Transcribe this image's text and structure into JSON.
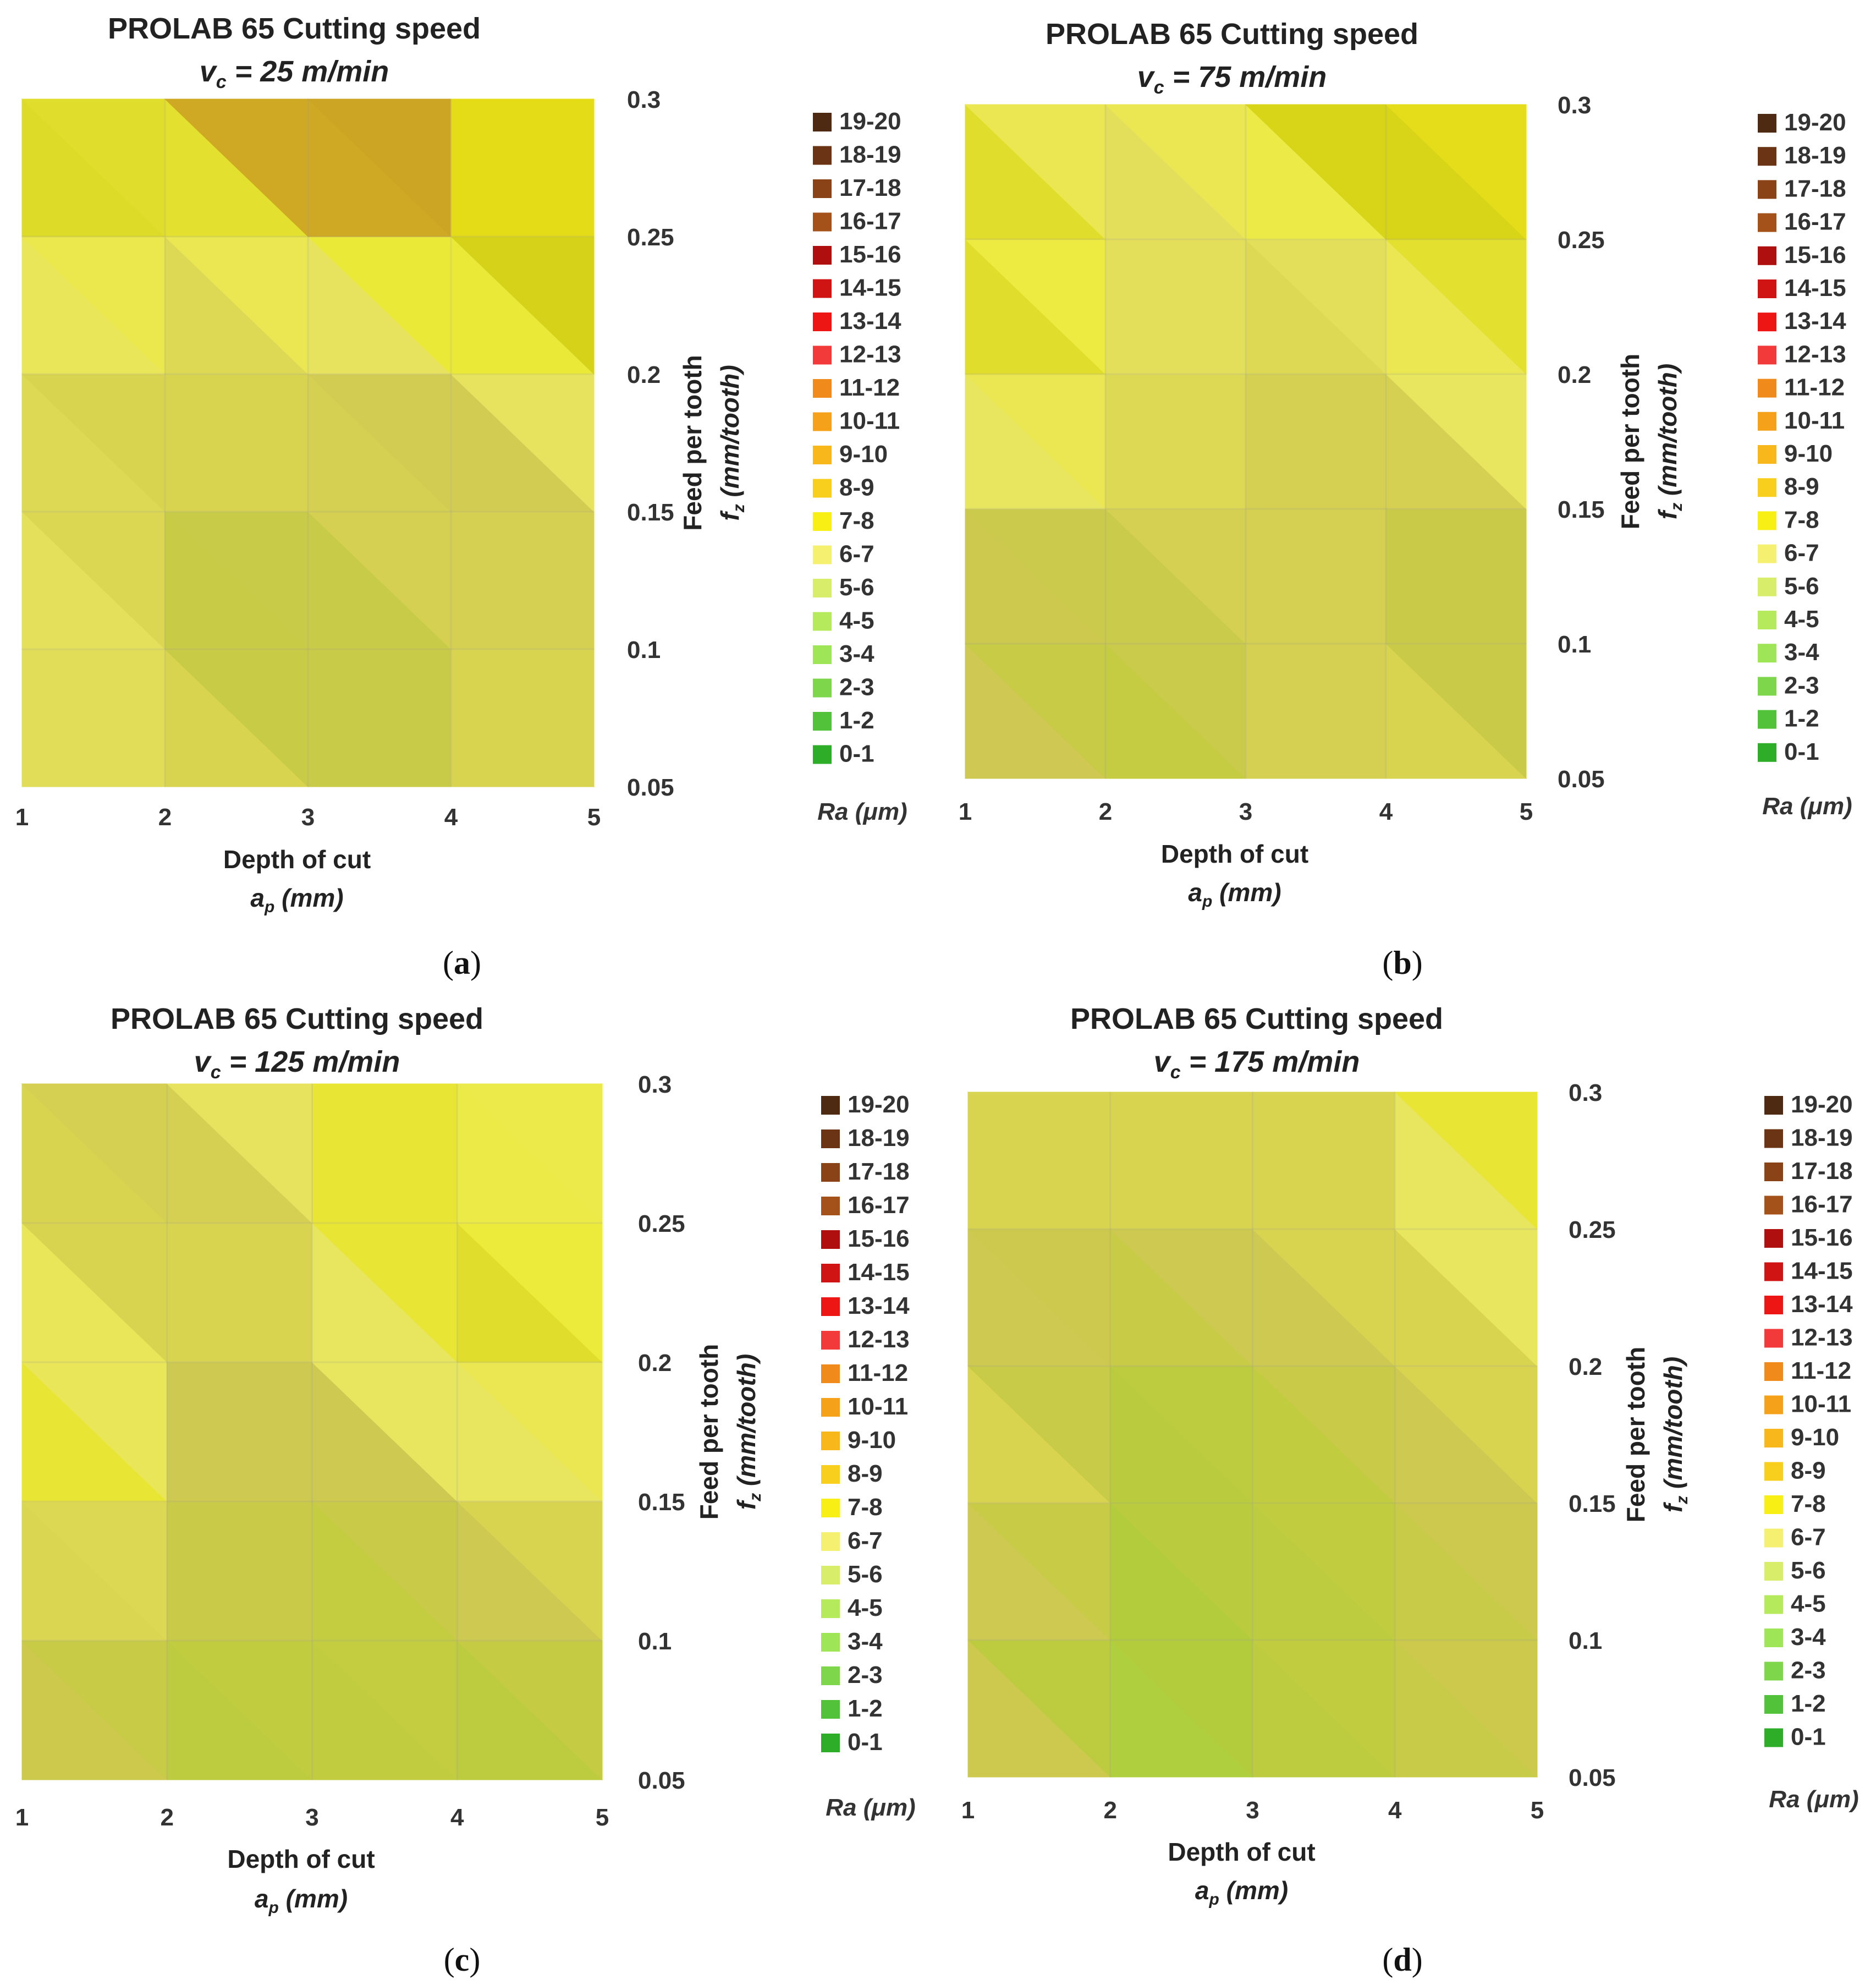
{
  "figure": {
    "panel_labels": [
      "a",
      "b",
      "c",
      "d"
    ],
    "legend_items": [
      "19-20",
      "18-19",
      "17-18",
      "16-17",
      "15-16",
      "14-15",
      "13-14",
      "12-13",
      "11-12",
      "10-11",
      "9-10",
      "8-9",
      "7-8",
      "6-7",
      "5-6",
      "4-5",
      "3-4",
      "2-3",
      "1-2",
      "0-1"
    ],
    "legend_colors": [
      "#4e2a12",
      "#6b3414",
      "#8a4317",
      "#a4521a",
      "#b00f0f",
      "#d01414",
      "#ee1515",
      "#f23a3a",
      "#f08a1a",
      "#f5a21a",
      "#f8b81c",
      "#f8cf1c",
      "#f8ef14",
      "#f6f070",
      "#d8ee6a",
      "#b4ea5c",
      "#9ee658",
      "#7ed64a",
      "#52c23a",
      "#2eae28"
    ],
    "legend_title": "Ra (μm)",
    "x_label_line1": "Depth of cut",
    "x_label_line2": "a",
    "x_label_sub": "p",
    "x_label_unit": " (mm)",
    "y_label_line1": "Feed per tooth",
    "y_label_line2": "f",
    "y_label_sub": "z",
    "y_label_unit": " (mm/tooth)",
    "title_line1": "PROLAB 65 Cutting speed",
    "title_v": "v",
    "title_sub": "c"
  },
  "colors": {
    "grid": "#999999",
    "paper": "#ffffff"
  },
  "chart_data": [
    {
      "type": "heatmap",
      "title": "PROLAB 65 Cutting speed",
      "subtitle": "= 25 m/min",
      "xlabel": "Depth of cut a_p (mm)",
      "ylabel": "Feed per tooth f_z (mm/tooth)",
      "x": [
        1,
        2,
        3,
        4,
        5
      ],
      "y": [
        0.05,
        0.1,
        0.15,
        0.2,
        0.25,
        0.3
      ],
      "x_ticks": [
        "1",
        "2",
        "3",
        "4",
        "5"
      ],
      "y_ticks": [
        "0.05",
        "0.1",
        "0.15",
        "0.2",
        "0.25",
        "0.3"
      ],
      "values": [
        [
          5.8,
          6.2,
          6.0,
          6.0,
          6.0
        ],
        [
          6.8,
          5.8,
          3.5,
          6.0,
          6.0
        ],
        [
          6.5,
          6.0,
          6.0,
          5.8,
          6.0
        ],
        [
          6.0,
          6.0,
          6.0,
          5.8,
          7.6
        ],
        [
          7.8,
          6.5,
          7.6,
          7.8,
          7.6
        ],
        [
          7.8,
          7.6,
          17.0,
          8.5,
          7.8
        ]
      ]
    },
    {
      "type": "heatmap",
      "title": "PROLAB 65 Cutting speed",
      "subtitle": "= 75 m/min",
      "xlabel": "Depth of cut a_p (mm)",
      "ylabel": "Feed per tooth f_z (mm/tooth)",
      "x": [
        1,
        2,
        3,
        4,
        5
      ],
      "y": [
        0.05,
        0.1,
        0.15,
        0.2,
        0.25,
        0.3
      ],
      "x_ticks": [
        "1",
        "2",
        "3",
        "4",
        "5"
      ],
      "y_ticks": [
        "0.05",
        "0.1",
        "0.15",
        "0.2",
        "0.25",
        "0.3"
      ],
      "values": [
        [
          6.2,
          4.5,
          6.0,
          6.0,
          6.0
        ],
        [
          6.5,
          4.2,
          5.8,
          6.0,
          3.8
        ],
        [
          6.0,
          6.0,
          6.0,
          5.8,
          6.0
        ],
        [
          7.6,
          6.5,
          6.0,
          6.0,
          7.6
        ],
        [
          7.8,
          6.5,
          6.5,
          6.5,
          7.6
        ],
        [
          7.6,
          6.0,
          7.6,
          9.0,
          7.6
        ]
      ]
    },
    {
      "type": "heatmap",
      "title": "PROLAB 65 Cutting speed",
      "subtitle": "= 125 m/min",
      "xlabel": "Depth of cut a_p (mm)",
      "ylabel": "Feed per tooth f_z (mm/tooth)",
      "x": [
        1,
        2,
        3,
        4,
        5
      ],
      "y": [
        0.05,
        0.1,
        0.15,
        0.2,
        0.25,
        0.3
      ],
      "x_ticks": [
        "1",
        "2",
        "3",
        "4",
        "5"
      ],
      "y_ticks": [
        "0.05",
        "0.1",
        "0.15",
        "0.2",
        "0.25",
        "0.3"
      ],
      "values": [
        [
          6.0,
          4.5,
          4.5,
          4.8,
          4.2
        ],
        [
          5.8,
          4.8,
          4.8,
          4.8,
          6.0
        ],
        [
          7.6,
          6.0,
          4.8,
          6.0,
          6.0
        ],
        [
          7.8,
          6.0,
          6.0,
          7.6,
          6.5
        ],
        [
          6.0,
          6.0,
          6.0,
          7.8,
          6.8
        ],
        [
          6.0,
          5.8,
          7.6,
          6.0,
          7.6
        ]
      ]
    },
    {
      "type": "heatmap",
      "title": "PROLAB 65 Cutting speed",
      "subtitle": "= 175 m/min",
      "xlabel": "Depth of cut a_p (mm)",
      "ylabel": "Feed per tooth f_z (mm/tooth)",
      "x": [
        1,
        2,
        3,
        4,
        5
      ],
      "y": [
        0.05,
        0.1,
        0.15,
        0.2,
        0.25,
        0.3
      ],
      "x_ticks": [
        "1",
        "2",
        "3",
        "4",
        "5"
      ],
      "y_ticks": [
        "0.05",
        "0.1",
        "0.15",
        "0.2",
        "0.25",
        "0.3"
      ],
      "values": [
        [
          6.5,
          4.0,
          4.5,
          4.8,
          5.8
        ],
        [
          6.0,
          3.8,
          4.5,
          4.8,
          5.8
        ],
        [
          7.0,
          4.5,
          4.5,
          4.8,
          6.0
        ],
        [
          6.5,
          4.5,
          4.8,
          6.0,
          6.0
        ],
        [
          6.0,
          6.0,
          6.0,
          6.0,
          7.6
        ],
        [
          6.0,
          6.0,
          6.0,
          6.0,
          7.8
        ]
      ]
    }
  ]
}
